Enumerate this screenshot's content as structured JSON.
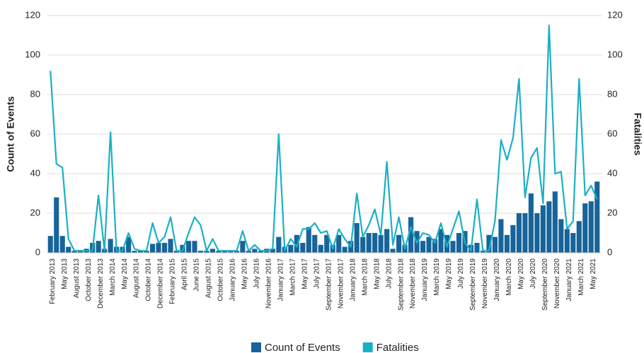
{
  "chart_data": {
    "type": "bar_line",
    "categories": [
      "February 2013",
      null,
      "May 2013",
      null,
      "August 2013",
      null,
      "October 2013",
      null,
      "December 2013",
      null,
      "March 2014",
      null,
      "May 2014",
      null,
      "August 2014",
      null,
      "October 2014",
      null,
      "December 2014",
      null,
      "February 2015",
      null,
      "April 2015",
      null,
      "June 2015",
      null,
      "August 2015",
      null,
      "October 2015",
      null,
      "January 2016",
      null,
      "May 2016",
      null,
      "July 2016",
      null,
      "November 2016",
      null,
      "January 2017",
      null,
      "March 2017",
      null,
      "May 2017",
      null,
      "July 2017",
      null,
      "September 2017",
      null,
      "November 2017",
      null,
      "January 2018",
      null,
      "March 2018",
      null,
      "May 2018",
      null,
      "July 2018",
      null,
      "September 2018",
      null,
      "November 2018",
      null,
      "January 2019",
      null,
      "March 2019",
      null,
      "May 2019",
      null,
      "July 2019",
      null,
      "September 2019",
      null,
      "November 2019",
      null,
      "January 2020",
      null,
      "March 2020",
      null,
      "May 2020",
      null,
      "July 2020",
      null,
      "September 2020",
      null,
      "November 2020",
      null,
      "January 2021",
      null,
      "March 2021",
      null,
      "May 2021",
      null
    ],
    "series": [
      {
        "name": "Count of Events",
        "color": "#17649a",
        "kind": "bar",
        "axis": "y",
        "values": [
          8.5,
          28,
          8.5,
          3,
          1,
          1,
          2,
          5,
          6,
          2,
          7,
          3,
          3,
          8,
          1,
          1,
          1,
          4.5,
          5,
          5,
          7,
          1,
          4,
          6,
          6,
          1,
          1,
          2,
          1,
          1,
          1,
          1,
          6,
          1,
          2,
          1,
          2,
          2,
          8,
          3,
          4,
          9,
          5,
          13,
          9,
          4,
          9,
          4,
          9,
          3,
          6,
          15,
          8,
          10,
          10,
          9,
          12,
          2,
          9,
          4,
          18,
          11,
          6,
          8,
          7,
          12,
          9,
          6,
          10,
          11,
          4,
          5,
          1,
          9,
          8,
          17,
          9,
          14,
          20,
          20,
          30,
          20,
          24,
          26,
          31,
          17,
          12,
          10,
          16,
          25,
          26,
          36
        ]
      },
      {
        "name": "Fatalities",
        "color": "#1ab0c4",
        "kind": "line",
        "axis": "y2",
        "values": [
          92,
          45,
          43,
          7,
          1,
          1,
          1,
          1,
          29,
          1,
          61,
          1,
          1,
          10,
          2,
          1,
          1,
          15,
          5,
          8,
          18,
          1,
          1,
          10,
          18,
          14,
          1,
          7,
          1,
          1,
          1,
          1,
          11,
          1,
          4,
          1,
          1,
          2,
          60,
          1,
          7,
          3,
          12,
          12,
          15,
          10,
          11,
          2,
          12,
          7,
          3,
          30,
          8,
          14,
          22,
          9,
          46,
          4,
          18,
          2,
          13,
          5,
          10,
          9,
          5,
          15,
          3,
          12,
          21,
          5,
          1,
          27,
          1,
          1,
          16,
          57,
          47,
          58,
          88,
          28,
          48,
          53,
          25,
          115,
          40,
          41,
          12,
          16,
          88,
          29,
          34,
          27
        ]
      }
    ],
    "y_label": "Count of Events",
    "y2_label": "Fatalities",
    "ylim": [
      0,
      120
    ],
    "yticks": [
      0,
      20,
      40,
      60,
      80,
      100,
      120
    ],
    "y2lim": [
      0,
      120
    ],
    "y2ticks": [
      0,
      20,
      40,
      60,
      80,
      100,
      120
    ],
    "grid": true,
    "legend": "bottom"
  }
}
